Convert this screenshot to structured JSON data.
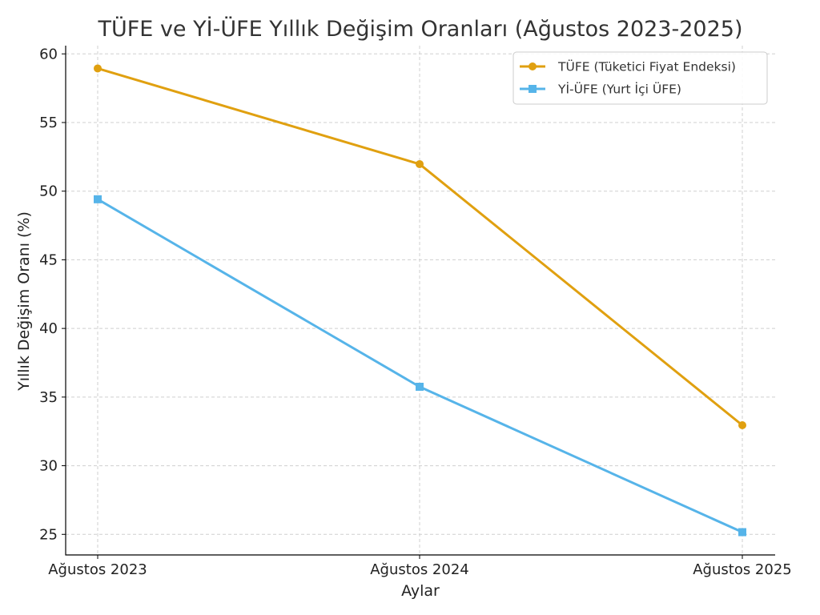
{
  "chart_data": {
    "type": "line",
    "title": "TÜFE ve Yİ-ÜFE Yıllık Değişim Oranları (Ağustos 2023-2025)",
    "xlabel": "Aylar",
    "ylabel": "Yıllık Değişim Oranı (%)",
    "categories": [
      "Ağustos 2023",
      "Ağustos 2024",
      "Ağustos 2025"
    ],
    "ylim": [
      23.5,
      60.6
    ],
    "yticks": [
      25,
      30,
      35,
      40,
      45,
      50,
      55,
      60
    ],
    "grid": true,
    "legend_position": "top-right",
    "series": [
      {
        "name": "TÜFE (Tüketici Fiyat Endeksi)",
        "values": [
          58.94,
          51.97,
          32.95
        ],
        "color": "#E0A010",
        "marker": "circle"
      },
      {
        "name": "Yİ-ÜFE (Yurt İçi ÜFE)",
        "values": [
          49.41,
          35.75,
          25.16
        ],
        "color": "#56B4E9",
        "marker": "square"
      }
    ]
  }
}
